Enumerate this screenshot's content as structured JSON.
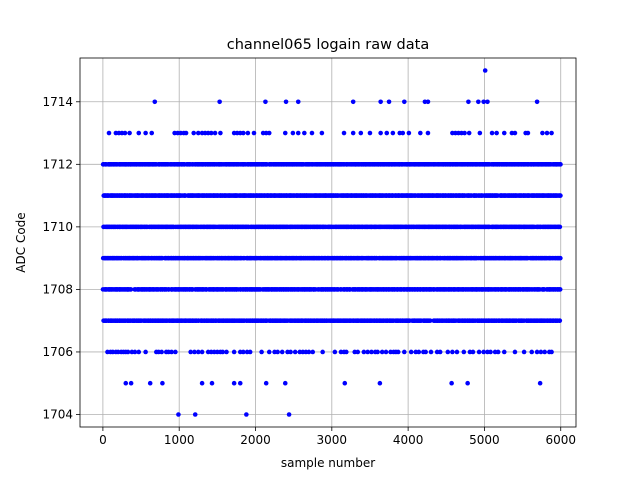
{
  "chart_data": {
    "type": "scatter",
    "title": "channel065 logain raw data",
    "xlabel": "sample number",
    "ylabel": "ADC Code",
    "xlim": [
      -300,
      6200
    ],
    "ylim": [
      1703.6,
      1715.4
    ],
    "xticks": [
      0,
      1000,
      2000,
      3000,
      4000,
      5000,
      6000
    ],
    "yticks": [
      1704,
      1706,
      1708,
      1710,
      1712,
      1714
    ],
    "grid": true,
    "marker_color": "#0000ff",
    "sample_count": 6000,
    "dense_levels": [
      1707,
      1708,
      1709,
      1710,
      1711,
      1712
    ],
    "series": [
      {
        "level": 1706,
        "x": [
          60,
          100,
          130,
          170,
          200,
          240,
          270,
          300,
          330,
          380,
          420,
          470,
          560,
          700,
          730,
          770,
          830,
          860,
          900,
          950,
          1150,
          1200,
          1250,
          1300,
          1380,
          1420,
          1460,
          1500,
          1540,
          1570,
          1620,
          1720,
          1800,
          1840,
          1890,
          1930,
          2080,
          2180,
          2250,
          2290,
          2350,
          2420,
          2460,
          2520,
          2580,
          2620,
          2660,
          2700,
          2750,
          2880,
          3040,
          3120,
          3160,
          3190,
          3300,
          3340,
          3420,
          3470,
          3520,
          3570,
          3600,
          3660,
          3710,
          3770,
          3810,
          3840,
          3870,
          3950,
          4040,
          4100,
          4140,
          4200,
          4230,
          4300,
          4380,
          4420,
          4520,
          4580,
          4640,
          4730,
          4810,
          4850,
          4930,
          4990,
          5040,
          5080,
          5140,
          5180,
          5260,
          5400,
          5520,
          5620,
          5690,
          5740,
          5790,
          5850,
          5880
        ]
      },
      {
        "level": 1713,
        "x": [
          80,
          170,
          210,
          250,
          290,
          350,
          470,
          560,
          640,
          940,
          980,
          1020,
          1060,
          1090,
          1190,
          1250,
          1300,
          1340,
          1380,
          1420,
          1470,
          1540,
          1720,
          1760,
          1800,
          1840,
          1900,
          1980,
          2100,
          2140,
          2180,
          2390,
          2490,
          2560,
          2640,
          2740,
          2870,
          3160,
          3280,
          3380,
          3500,
          3640,
          3720,
          3800,
          3890,
          3930,
          4010,
          4160,
          4260,
          4580,
          4620,
          4660,
          4700,
          4740,
          4800,
          4940,
          5100,
          5160,
          5260,
          5360,
          5400,
          5540,
          5570,
          5760,
          5820,
          5880
        ]
      },
      {
        "level": 1705,
        "x": [
          300,
          370,
          620,
          780,
          1300,
          1430,
          1720,
          1800,
          2140,
          2390,
          3170,
          3630,
          4570,
          4780,
          5730
        ]
      },
      {
        "level": 1714,
        "x": [
          680,
          1530,
          2130,
          2400,
          2560,
          3280,
          3640,
          3750,
          3950,
          4220,
          4260,
          4790,
          4920,
          4990,
          5040,
          5690
        ]
      },
      {
        "level": 1704,
        "x": [
          990,
          1210,
          1880,
          2440
        ]
      },
      {
        "level": 1715,
        "x": [
          5010
        ]
      }
    ]
  }
}
